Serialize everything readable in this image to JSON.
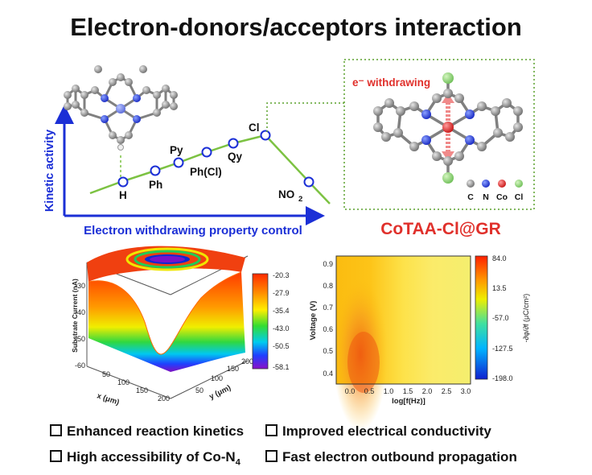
{
  "title": "Electron-donors/acceptors interaction",
  "activity_plot": {
    "ylabel": "Kinetic activity",
    "xlabel": "Electron withdrawing property control",
    "points": [
      "H",
      "Ph",
      "Py",
      "Ph(Cl)",
      "Qy",
      "Cl",
      "NO2"
    ]
  },
  "molecule_inset": {
    "annotation": "e⁻ withdrawing",
    "legend": [
      "C",
      "N",
      "Co",
      "Cl"
    ],
    "product_label": "CoTAA-Cl@GR"
  },
  "surface_plot": {
    "zlabel": "Substrate Current (nA)",
    "z_ticks": [
      "-30",
      "-40",
      "-50",
      "-60"
    ],
    "xlabel": "x (μm)",
    "x_ticks": [
      "50",
      "100",
      "150",
      "200"
    ],
    "ylabel": "y (μm)",
    "y_ticks": [
      "50",
      "100",
      "150",
      "200"
    ],
    "colorbar": [
      "-20.3",
      "-27.9",
      "-35.4",
      "-43.0",
      "-50.5",
      "-58.1"
    ]
  },
  "contour_plot": {
    "ylabel": "Voltage (V)",
    "xlabel": "log[f(Hz)]",
    "y_ticks": [
      "0.9",
      "0.8",
      "0.7",
      "0.6",
      "0.5",
      "0.4"
    ],
    "x_ticks": [
      "0.0",
      "0.5",
      "1.0",
      "1.5",
      "2.0",
      "2.5",
      "3.0"
    ],
    "colorbar": [
      "84.0",
      "13.5",
      "-57.0",
      "-127.5",
      "-198.0"
    ],
    "colorbar_label": "-∂φ/∂f (μC/cm²)"
  },
  "bullets": [
    "Enhanced reaction kinetics",
    "Improved electrical conductivity",
    "High accessibility of Co-N",
    "Fast electron outbound propagation"
  ],
  "bullet_subscript": "4",
  "colors": {
    "line": "#7cc242",
    "marker": "#1b2fd6",
    "axis_label": "#1b2fd6",
    "product": "#e0302b",
    "inset_border": "#5aa02c"
  }
}
